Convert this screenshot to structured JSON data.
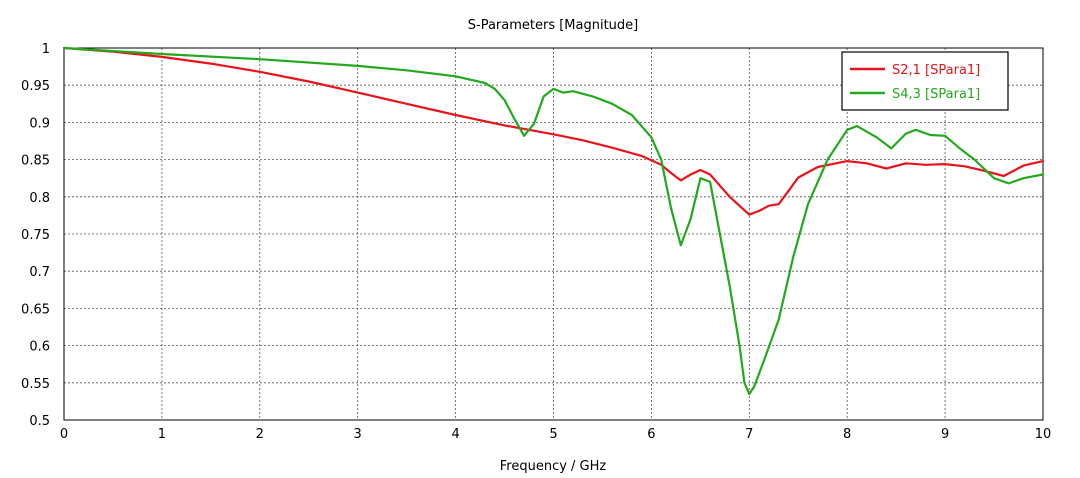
{
  "chart_data": {
    "type": "line",
    "title": "S-Parameters [Magnitude]",
    "xlabel": "Frequency / GHz",
    "ylabel": "",
    "xlim": [
      0,
      10
    ],
    "ylim": [
      0.5,
      1
    ],
    "x_ticks": [
      "0",
      "1",
      "2",
      "3",
      "4",
      "5",
      "6",
      "7",
      "8",
      "9",
      "10"
    ],
    "y_ticks": [
      "0.5",
      "0.55",
      "0.6",
      "0.65",
      "0.7",
      "0.75",
      "0.8",
      "0.85",
      "0.9",
      "0.95",
      "1"
    ],
    "grid": true,
    "legend_position": "top-right",
    "series": [
      {
        "name": "S2,1 [SPara1]",
        "color": "#e8141b",
        "points": [
          [
            0,
            1
          ],
          [
            0.5,
            0.995
          ],
          [
            1,
            0.988
          ],
          [
            1.5,
            0.979
          ],
          [
            2,
            0.968
          ],
          [
            2.5,
            0.955
          ],
          [
            3,
            0.94
          ],
          [
            3.5,
            0.925
          ],
          [
            4,
            0.91
          ],
          [
            4.5,
            0.896
          ],
          [
            5,
            0.884
          ],
          [
            5.3,
            0.876
          ],
          [
            5.6,
            0.866
          ],
          [
            5.9,
            0.855
          ],
          [
            6.1,
            0.843
          ],
          [
            6.2,
            0.832
          ],
          [
            6.3,
            0.822
          ],
          [
            6.4,
            0.83
          ],
          [
            6.5,
            0.836
          ],
          [
            6.6,
            0.83
          ],
          [
            6.8,
            0.8
          ],
          [
            7,
            0.776
          ],
          [
            7.1,
            0.781
          ],
          [
            7.2,
            0.788
          ],
          [
            7.3,
            0.79
          ],
          [
            7.5,
            0.826
          ],
          [
            7.7,
            0.84
          ],
          [
            8,
            0.848
          ],
          [
            8.2,
            0.845
          ],
          [
            8.4,
            0.838
          ],
          [
            8.6,
            0.845
          ],
          [
            8.8,
            0.843
          ],
          [
            9,
            0.844
          ],
          [
            9.2,
            0.841
          ],
          [
            9.4,
            0.835
          ],
          [
            9.6,
            0.828
          ],
          [
            9.8,
            0.842
          ],
          [
            10,
            0.848
          ]
        ]
      },
      {
        "name": "S4,3 [SPara1]",
        "color": "#22a91c",
        "points": [
          [
            0,
            1
          ],
          [
            1,
            0.992
          ],
          [
            2,
            0.985
          ],
          [
            3,
            0.976
          ],
          [
            3.5,
            0.97
          ],
          [
            4,
            0.962
          ],
          [
            4.3,
            0.953
          ],
          [
            4.4,
            0.945
          ],
          [
            4.5,
            0.93
          ],
          [
            4.6,
            0.905
          ],
          [
            4.7,
            0.882
          ],
          [
            4.8,
            0.898
          ],
          [
            4.9,
            0.935
          ],
          [
            5,
            0.945
          ],
          [
            5.1,
            0.94
          ],
          [
            5.2,
            0.942
          ],
          [
            5.4,
            0.935
          ],
          [
            5.6,
            0.925
          ],
          [
            5.8,
            0.91
          ],
          [
            6,
            0.88
          ],
          [
            6.1,
            0.85
          ],
          [
            6.2,
            0.785
          ],
          [
            6.3,
            0.735
          ],
          [
            6.4,
            0.77
          ],
          [
            6.5,
            0.825
          ],
          [
            6.6,
            0.82
          ],
          [
            6.7,
            0.75
          ],
          [
            6.8,
            0.68
          ],
          [
            6.9,
            0.6
          ],
          [
            6.95,
            0.55
          ],
          [
            7,
            0.535
          ],
          [
            7.05,
            0.545
          ],
          [
            7.15,
            0.58
          ],
          [
            7.3,
            0.635
          ],
          [
            7.45,
            0.72
          ],
          [
            7.6,
            0.79
          ],
          [
            7.8,
            0.85
          ],
          [
            8,
            0.89
          ],
          [
            8.1,
            0.895
          ],
          [
            8.3,
            0.88
          ],
          [
            8.45,
            0.865
          ],
          [
            8.6,
            0.885
          ],
          [
            8.7,
            0.89
          ],
          [
            8.85,
            0.883
          ],
          [
            9,
            0.882
          ],
          [
            9.15,
            0.865
          ],
          [
            9.3,
            0.85
          ],
          [
            9.5,
            0.825
          ],
          [
            9.65,
            0.818
          ],
          [
            9.8,
            0.825
          ],
          [
            10,
            0.83
          ]
        ]
      }
    ]
  }
}
